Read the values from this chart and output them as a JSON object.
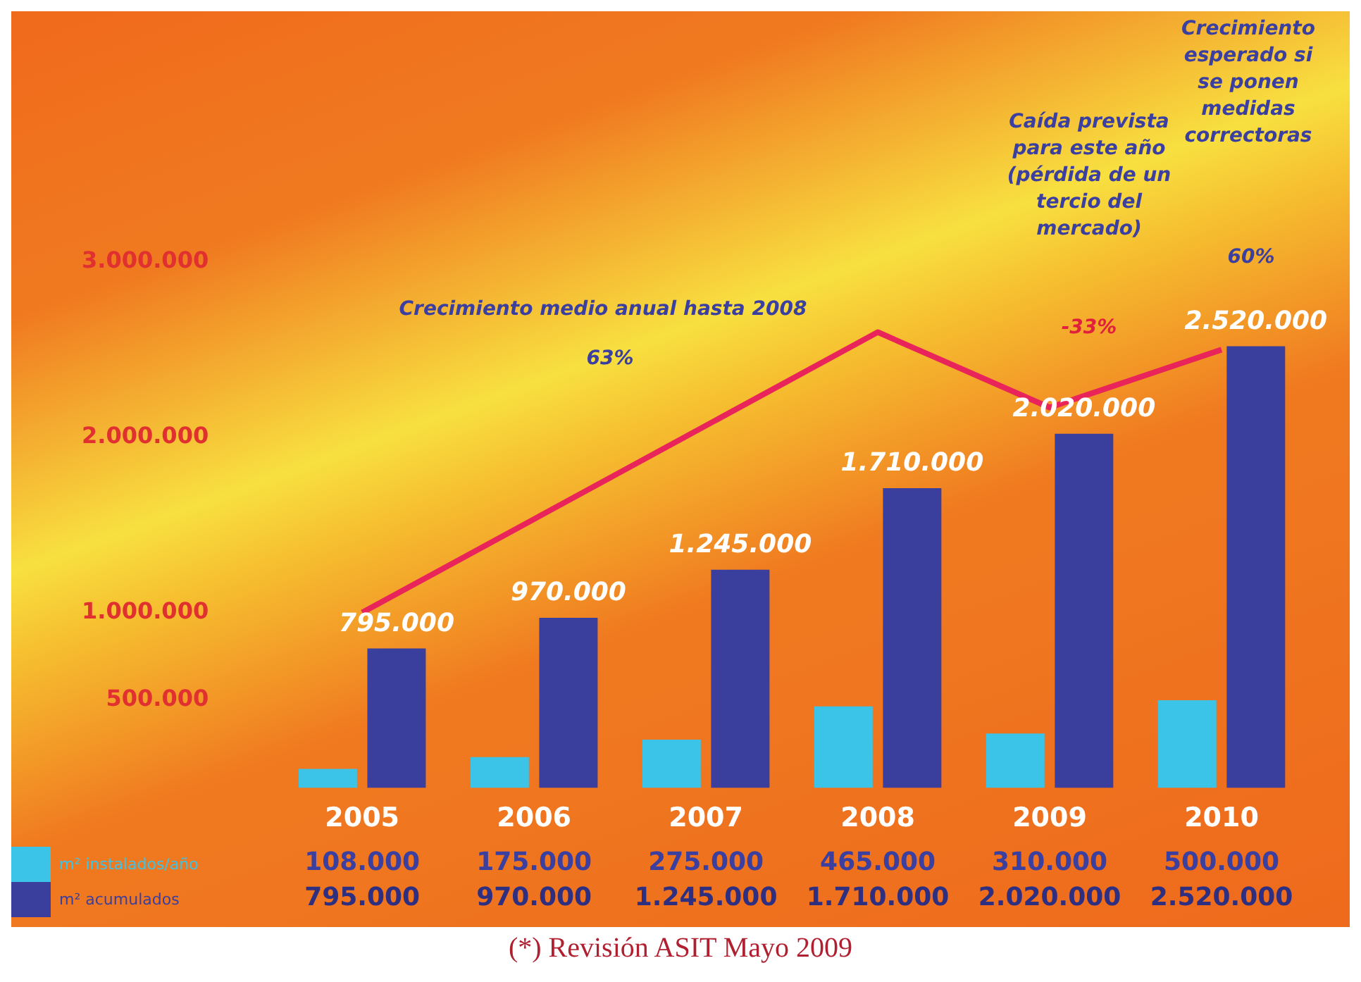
{
  "chart_data": {
    "type": "bar",
    "categories": [
      "2005",
      "2006",
      "2007",
      "2008",
      "2009",
      "2010"
    ],
    "series": [
      {
        "name": "m² instalados/año",
        "color": "#3cc4e8",
        "values": [
          108000,
          175000,
          275000,
          465000,
          310000,
          500000
        ],
        "value_labels": [
          "108.000",
          "175.000",
          "275.000",
          "465.000",
          "310.000",
          "500.000"
        ]
      },
      {
        "name": "m² acumulados",
        "color": "#3a3f9e",
        "values": [
          795000,
          970000,
          1245000,
          1710000,
          2020000,
          2520000
        ],
        "value_labels": [
          "795.000",
          "970.000",
          "1.245.000",
          "1.710.000",
          "2.020.000",
          "2.520.000"
        ]
      },
      {
        "type": "line",
        "color": "#e8245a",
        "values": [
          1000000,
          null,
          null,
          2600000,
          2170000,
          2500000
        ]
      }
    ],
    "ylim": [
      0,
      3000000
    ],
    "yticks": [
      {
        "value": 500000,
        "label": "500.000"
      },
      {
        "value": 1000000,
        "label": "1.000.000"
      },
      {
        "value": 2000000,
        "label": "2.000.000"
      },
      {
        "value": 3000000,
        "label": "3.000.000"
      }
    ],
    "grid": false,
    "legend": "bottom left",
    "marker": "none",
    "annotations": [
      "Crecimiento medio anual hasta 2008",
      "63%",
      "Caída prevista para este año (pérdida de un tercio del mercado)",
      "-33%",
      "Crecimiento esperado si se ponen medidas correctoras",
      "60%",
      "(*) Revisión ASIT Mayo 2009"
    ]
  }
}
